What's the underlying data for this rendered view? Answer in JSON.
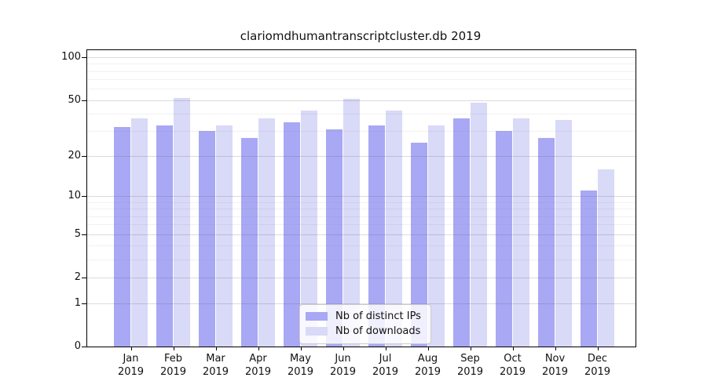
{
  "title": "clariomdhumantranscriptcluster.db 2019",
  "chart_data": {
    "type": "bar",
    "title": "clariomdhumantranscriptcluster.db 2019",
    "scale": "log10(value+1)",
    "categories": [
      "Jan",
      "Feb",
      "Mar",
      "Apr",
      "May",
      "Jun",
      "Jul",
      "Aug",
      "Sep",
      "Oct",
      "Nov",
      "Dec"
    ],
    "year_label": "2019",
    "series": [
      {
        "name": "Nb of distinct IPs",
        "color": "#a8a8f4",
        "values": [
          32,
          33,
          30,
          27,
          35,
          31,
          33,
          25,
          37,
          30,
          27,
          11
        ]
      },
      {
        "name": "Nb of downloads",
        "color": "#d9d9f8",
        "values": [
          37,
          52,
          33,
          37,
          42,
          51,
          42,
          33,
          48,
          37,
          36,
          16
        ]
      }
    ],
    "yticks": [
      0,
      1,
      2,
      5,
      10,
      20,
      50,
      100
    ],
    "minor_yticks": [
      3,
      4,
      6,
      7,
      8,
      9,
      30,
      40,
      60,
      70,
      80,
      90
    ],
    "ylim": [
      0,
      112
    ],
    "xlabel": "",
    "ylabel": "",
    "grid": true,
    "legend_position": "inside-bottom-center"
  }
}
